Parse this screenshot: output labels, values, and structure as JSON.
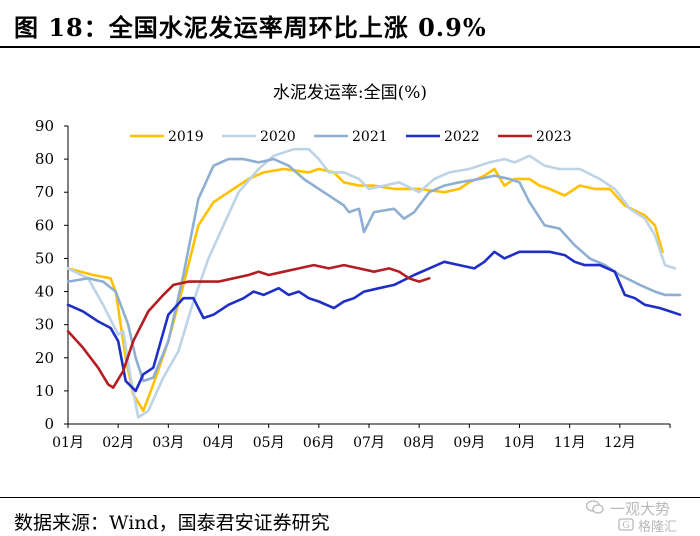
{
  "figure": {
    "title": "图 18：全国水泥发运率周环比上涨 0.9%",
    "source": "数据来源：Wind，国泰君安证券研究"
  },
  "watermark": {
    "line1": "一观大势",
    "line2": "格隆汇"
  },
  "colors": {
    "2019": "#FFC000",
    "2020": "#BDD3E6",
    "2021": "#8EAFD1",
    "2022": "#1F2FC6",
    "2023": "#B41E22",
    "axis": "#000000"
  },
  "chart_data": {
    "type": "line",
    "title": "水泥发运率:全国(%)",
    "xlabel": "",
    "ylabel": "",
    "ylim": [
      0,
      90
    ],
    "yticks": [
      0,
      10,
      20,
      30,
      40,
      50,
      60,
      70,
      80,
      90
    ],
    "xlim": [
      0,
      12
    ],
    "x_tick_labels": [
      "01月",
      "02月",
      "03月",
      "04月",
      "05月",
      "06月",
      "07月",
      "08月",
      "09月",
      "10月",
      "11月",
      "12月"
    ],
    "grid": false,
    "legend": "top",
    "series": [
      {
        "name": "2019",
        "points": [
          [
            0,
            47
          ],
          [
            0.5,
            45
          ],
          [
            0.85,
            44
          ],
          [
            0.95,
            40
          ],
          [
            1.15,
            20
          ],
          [
            1.3,
            9
          ],
          [
            1.5,
            4
          ],
          [
            1.7,
            12
          ],
          [
            2.0,
            25
          ],
          [
            2.3,
            42
          ],
          [
            2.6,
            60
          ],
          [
            2.9,
            67
          ],
          [
            3.2,
            70
          ],
          [
            3.6,
            74
          ],
          [
            3.9,
            76
          ],
          [
            4.3,
            77
          ],
          [
            4.8,
            76
          ],
          [
            5.0,
            77
          ],
          [
            5.3,
            76
          ],
          [
            5.5,
            73
          ],
          [
            5.8,
            72
          ],
          [
            6.1,
            72
          ],
          [
            6.5,
            71
          ],
          [
            7.0,
            71
          ],
          [
            7.5,
            70
          ],
          [
            7.8,
            71
          ],
          [
            8.0,
            73
          ],
          [
            8.3,
            75
          ],
          [
            8.5,
            77
          ],
          [
            8.7,
            72
          ],
          [
            8.9,
            74
          ],
          [
            9.2,
            74
          ],
          [
            9.4,
            72
          ],
          [
            9.6,
            71
          ],
          [
            9.9,
            69
          ],
          [
            10.2,
            72
          ],
          [
            10.5,
            71
          ],
          [
            10.8,
            71
          ],
          [
            11.1,
            66
          ],
          [
            11.5,
            63
          ],
          [
            11.7,
            60
          ],
          [
            11.85,
            52
          ]
        ]
      },
      {
        "name": "2020",
        "points": [
          [
            0,
            47
          ],
          [
            0.4,
            44
          ],
          [
            0.7,
            36
          ],
          [
            1.0,
            27
          ],
          [
            1.1,
            28
          ],
          [
            1.25,
            14
          ],
          [
            1.4,
            2
          ],
          [
            1.6,
            4
          ],
          [
            1.9,
            14
          ],
          [
            2.2,
            22
          ],
          [
            2.5,
            37
          ],
          [
            2.8,
            50
          ],
          [
            3.1,
            60
          ],
          [
            3.4,
            70
          ],
          [
            3.8,
            77
          ],
          [
            4.1,
            81
          ],
          [
            4.5,
            83
          ],
          [
            4.8,
            83
          ],
          [
            5.0,
            80
          ],
          [
            5.2,
            76
          ],
          [
            5.5,
            76
          ],
          [
            5.8,
            74
          ],
          [
            6.0,
            71
          ],
          [
            6.3,
            72
          ],
          [
            6.6,
            73
          ],
          [
            7.0,
            70
          ],
          [
            7.3,
            74
          ],
          [
            7.6,
            76
          ],
          [
            8.0,
            77
          ],
          [
            8.4,
            79
          ],
          [
            8.7,
            80
          ],
          [
            8.9,
            79
          ],
          [
            9.2,
            81
          ],
          [
            9.5,
            78
          ],
          [
            9.8,
            77
          ],
          [
            10.2,
            77
          ],
          [
            10.6,
            74
          ],
          [
            10.9,
            71
          ],
          [
            11.2,
            65
          ],
          [
            11.5,
            62
          ],
          [
            11.7,
            57
          ],
          [
            11.9,
            48
          ],
          [
            12.1,
            47
          ]
        ]
      },
      {
        "name": "2021",
        "points": [
          [
            0,
            43
          ],
          [
            0.4,
            44
          ],
          [
            0.7,
            43
          ],
          [
            0.95,
            40
          ],
          [
            1.2,
            30
          ],
          [
            1.35,
            20
          ],
          [
            1.5,
            13
          ],
          [
            1.7,
            14
          ],
          [
            2.0,
            25
          ],
          [
            2.3,
            45
          ],
          [
            2.6,
            68
          ],
          [
            2.9,
            78
          ],
          [
            3.2,
            80
          ],
          [
            3.5,
            80
          ],
          [
            3.8,
            79
          ],
          [
            4.1,
            80
          ],
          [
            4.4,
            78
          ],
          [
            4.7,
            74
          ],
          [
            5.0,
            71
          ],
          [
            5.3,
            68
          ],
          [
            5.5,
            66
          ],
          [
            5.6,
            64
          ],
          [
            5.8,
            65
          ],
          [
            5.9,
            58
          ],
          [
            6.1,
            64
          ],
          [
            6.5,
            65
          ],
          [
            6.7,
            62
          ],
          [
            6.9,
            64
          ],
          [
            7.2,
            70
          ],
          [
            7.5,
            72
          ],
          [
            7.8,
            73
          ],
          [
            8.2,
            74
          ],
          [
            8.5,
            75
          ],
          [
            8.8,
            74
          ],
          [
            9.0,
            73
          ],
          [
            9.2,
            67
          ],
          [
            9.5,
            60
          ],
          [
            9.8,
            59
          ],
          [
            10.1,
            54
          ],
          [
            10.4,
            50
          ],
          [
            10.7,
            48
          ],
          [
            11.0,
            45
          ],
          [
            11.4,
            42
          ],
          [
            11.7,
            40
          ],
          [
            11.9,
            39
          ],
          [
            12.2,
            39
          ]
        ]
      },
      {
        "name": "2022",
        "points": [
          [
            0,
            36
          ],
          [
            0.3,
            34
          ],
          [
            0.6,
            31
          ],
          [
            0.85,
            29
          ],
          [
            1.0,
            25
          ],
          [
            1.15,
            13
          ],
          [
            1.35,
            10
          ],
          [
            1.5,
            15
          ],
          [
            1.7,
            17
          ],
          [
            2.0,
            33
          ],
          [
            2.3,
            38
          ],
          [
            2.5,
            38
          ],
          [
            2.7,
            32
          ],
          [
            2.9,
            33
          ],
          [
            3.2,
            36
          ],
          [
            3.5,
            38
          ],
          [
            3.7,
            40
          ],
          [
            3.9,
            39
          ],
          [
            4.2,
            41
          ],
          [
            4.4,
            39
          ],
          [
            4.6,
            40
          ],
          [
            4.8,
            38
          ],
          [
            5.0,
            37
          ],
          [
            5.3,
            35
          ],
          [
            5.5,
            37
          ],
          [
            5.7,
            38
          ],
          [
            5.9,
            40
          ],
          [
            6.2,
            41
          ],
          [
            6.5,
            42
          ],
          [
            6.9,
            45
          ],
          [
            7.2,
            47
          ],
          [
            7.5,
            49
          ],
          [
            7.8,
            48
          ],
          [
            8.1,
            47
          ],
          [
            8.3,
            49
          ],
          [
            8.5,
            52
          ],
          [
            8.7,
            50
          ],
          [
            9.0,
            52
          ],
          [
            9.3,
            52
          ],
          [
            9.6,
            52
          ],
          [
            9.9,
            51
          ],
          [
            10.1,
            49
          ],
          [
            10.3,
            48
          ],
          [
            10.6,
            48
          ],
          [
            10.9,
            46
          ],
          [
            11.1,
            39
          ],
          [
            11.3,
            38
          ],
          [
            11.5,
            36
          ],
          [
            11.8,
            35
          ],
          [
            12.0,
            34
          ],
          [
            12.2,
            33
          ]
        ]
      },
      {
        "name": "2023",
        "points": [
          [
            0,
            28
          ],
          [
            0.3,
            23
          ],
          [
            0.6,
            17
          ],
          [
            0.8,
            12
          ],
          [
            0.9,
            11
          ],
          [
            1.1,
            16
          ],
          [
            1.3,
            25
          ],
          [
            1.6,
            34
          ],
          [
            1.9,
            39
          ],
          [
            2.1,
            42
          ],
          [
            2.4,
            43
          ],
          [
            2.7,
            43
          ],
          [
            3.0,
            43
          ],
          [
            3.3,
            44
          ],
          [
            3.6,
            45
          ],
          [
            3.8,
            46
          ],
          [
            4.0,
            45
          ],
          [
            4.3,
            46
          ],
          [
            4.6,
            47
          ],
          [
            4.9,
            48
          ],
          [
            5.2,
            47
          ],
          [
            5.5,
            48
          ],
          [
            5.8,
            47
          ],
          [
            6.1,
            46
          ],
          [
            6.4,
            47
          ],
          [
            6.6,
            46
          ],
          [
            6.8,
            44
          ],
          [
            7.0,
            43
          ],
          [
            7.2,
            44
          ]
        ]
      }
    ]
  }
}
